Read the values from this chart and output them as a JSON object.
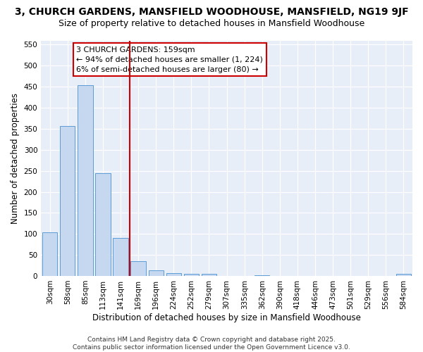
{
  "title": "3, CHURCH GARDENS, MANSFIELD WOODHOUSE, MANSFIELD, NG19 9JF",
  "subtitle": "Size of property relative to detached houses in Mansfield Woodhouse",
  "xlabel": "Distribution of detached houses by size in Mansfield Woodhouse",
  "ylabel": "Number of detached properties",
  "categories": [
    "30sqm",
    "58sqm",
    "85sqm",
    "113sqm",
    "141sqm",
    "169sqm",
    "196sqm",
    "224sqm",
    "252sqm",
    "279sqm",
    "307sqm",
    "335sqm",
    "362sqm",
    "390sqm",
    "418sqm",
    "446sqm",
    "473sqm",
    "501sqm",
    "529sqm",
    "556sqm",
    "584sqm"
  ],
  "values": [
    104,
    356,
    453,
    244,
    90,
    35,
    13,
    7,
    5,
    5,
    0,
    0,
    2,
    0,
    0,
    0,
    0,
    0,
    0,
    0,
    5
  ],
  "bar_color": "#c5d8f0",
  "bar_edge_color": "#5b9bd5",
  "vline_x_index": 5,
  "vline_color": "#cc0000",
  "annotation_text": "3 CHURCH GARDENS: 159sqm\n← 94% of detached houses are smaller (1, 224)\n6% of semi-detached houses are larger (80) →",
  "annotation_box_color": "white",
  "annotation_box_edge": "#cc0000",
  "background_color": "#ffffff",
  "plot_bg_color": "#e8eef8",
  "grid_color": "#ffffff",
  "ylim": [
    0,
    560
  ],
  "yticks": [
    0,
    50,
    100,
    150,
    200,
    250,
    300,
    350,
    400,
    450,
    500,
    550
  ],
  "title_fontsize": 10,
  "subtitle_fontsize": 9,
  "tick_fontsize": 7.5,
  "ylabel_fontsize": 8.5,
  "xlabel_fontsize": 8.5,
  "annotation_fontsize": 8,
  "footer_text": "Contains HM Land Registry data © Crown copyright and database right 2025.\nContains public sector information licensed under the Open Government Licence v3.0.",
  "footer_fontsize": 6.5
}
